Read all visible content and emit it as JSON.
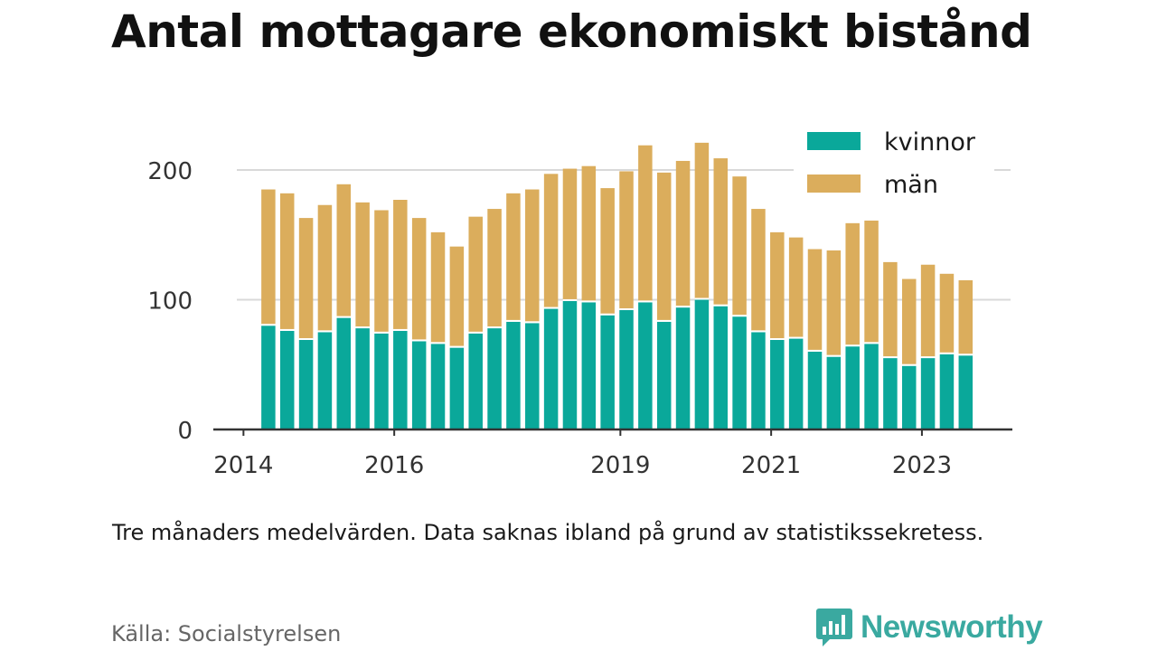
{
  "title": "Antal mottagare ekonomiskt bistånd",
  "note": "Tre månaders medelvärden. Data saknas ibland på grund av statistikssekretess.",
  "source": "Källa: Socialstyrelsen",
  "logo_text": "Newsworthy",
  "logo_icon": "bar-chart-speech-bubble-icon",
  "colors": {
    "kvinnor": "#0aa89a",
    "man": "#dbad5c",
    "grid": "#d9d9d9",
    "axis": "#333333",
    "logo": "#3aa9a0"
  },
  "chart_data": {
    "type": "bar",
    "stacked": true,
    "title": "Antal mottagare ekonomiskt bistånd",
    "xlabel": "",
    "ylabel": "",
    "ylim": [
      0,
      235
    ],
    "yticks": [
      0,
      100,
      200
    ],
    "grid": true,
    "legend": "top-right",
    "xticks": [
      {
        "label": "2014",
        "x": 2014.0
      },
      {
        "label": "2016",
        "x": 2016.0
      },
      {
        "label": "2019",
        "x": 2019.0
      },
      {
        "label": "2021",
        "x": 2021.0
      },
      {
        "label": "2023",
        "x": 2023.0
      }
    ],
    "xlim": [
      2013.6,
      2024.2
    ],
    "x": [
      2014.33,
      2014.58,
      2014.83,
      2015.08,
      2015.33,
      2015.58,
      2015.83,
      2016.08,
      2016.33,
      2016.58,
      2016.83,
      2017.08,
      2017.33,
      2017.58,
      2017.83,
      2018.08,
      2018.33,
      2018.58,
      2018.83,
      2019.08,
      2019.33,
      2019.58,
      2019.83,
      2020.08,
      2020.33,
      2020.58,
      2020.83,
      2021.08,
      2021.33,
      2021.58,
      2021.83,
      2022.08,
      2022.33,
      2022.58,
      2022.83,
      2023.08,
      2023.33,
      2023.58
    ],
    "series": [
      {
        "name": "kvinnor",
        "values": [
          80,
          76,
          69,
          75,
          86,
          78,
          74,
          76,
          68,
          66,
          63,
          74,
          78,
          83,
          82,
          93,
          99,
          98,
          88,
          92,
          98,
          83,
          94,
          100,
          95,
          87,
          75,
          69,
          70,
          60,
          56,
          64,
          66,
          55,
          49,
          55,
          58,
          57
        ]
      },
      {
        "name": "män",
        "values": [
          105,
          106,
          94,
          98,
          103,
          97,
          95,
          101,
          95,
          86,
          78,
          90,
          92,
          99,
          103,
          104,
          102,
          105,
          98,
          107,
          121,
          115,
          113,
          121,
          114,
          108,
          95,
          83,
          78,
          79,
          82,
          95,
          95,
          74,
          67,
          72,
          62,
          58
        ]
      }
    ]
  }
}
